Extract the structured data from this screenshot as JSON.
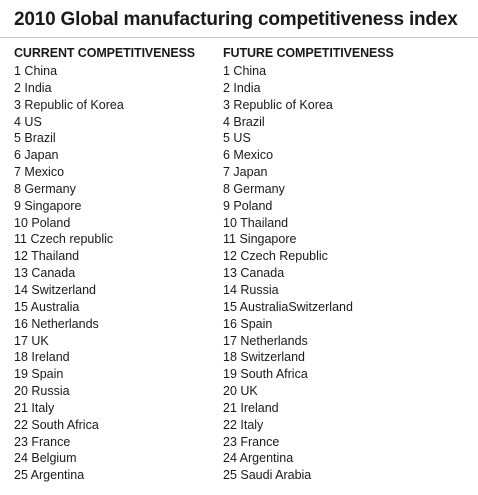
{
  "title": "2010 Global manufacturing competitiveness index",
  "current": {
    "header": "CURRENT COMPETITIVENESS",
    "items": [
      "1 China",
      "2 India",
      "3 Republic of Korea",
      "4 US",
      "5 Brazil",
      "6 Japan",
      "7 Mexico",
      "8 Germany",
      "9 Singapore",
      "10 Poland",
      "11 Czech republic",
      "12 Thailand",
      "13 Canada",
      "14 Switzerland",
      "15 Australia",
      "16 Netherlands",
      "17 UK",
      "18 Ireland",
      "19 Spain",
      "20 Russia",
      "21 Italy",
      "22 South Africa",
      "23 France",
      "24 Belgium",
      "25 Argentina"
    ]
  },
  "future": {
    "header": "FUTURE COMPETITIVENESS",
    "items": [
      "1 China",
      "2 India",
      "3 Republic of Korea",
      "4 Brazil",
      "5 US",
      "6 Mexico",
      "7 Japan",
      "8 Germany",
      "9 Poland",
      "10 Thailand",
      "11 Singapore",
      "12 Czech Republic",
      "13 Canada",
      "14 Russia",
      "15 AustraliaSwitzerland",
      "16 Spain",
      "17 Netherlands",
      "18 Switzerland",
      "19 South Africa",
      "20 UK",
      "21 Ireland",
      "22 Italy",
      "23 France",
      "24 Argentina",
      "25 Saudi Arabia"
    ]
  }
}
